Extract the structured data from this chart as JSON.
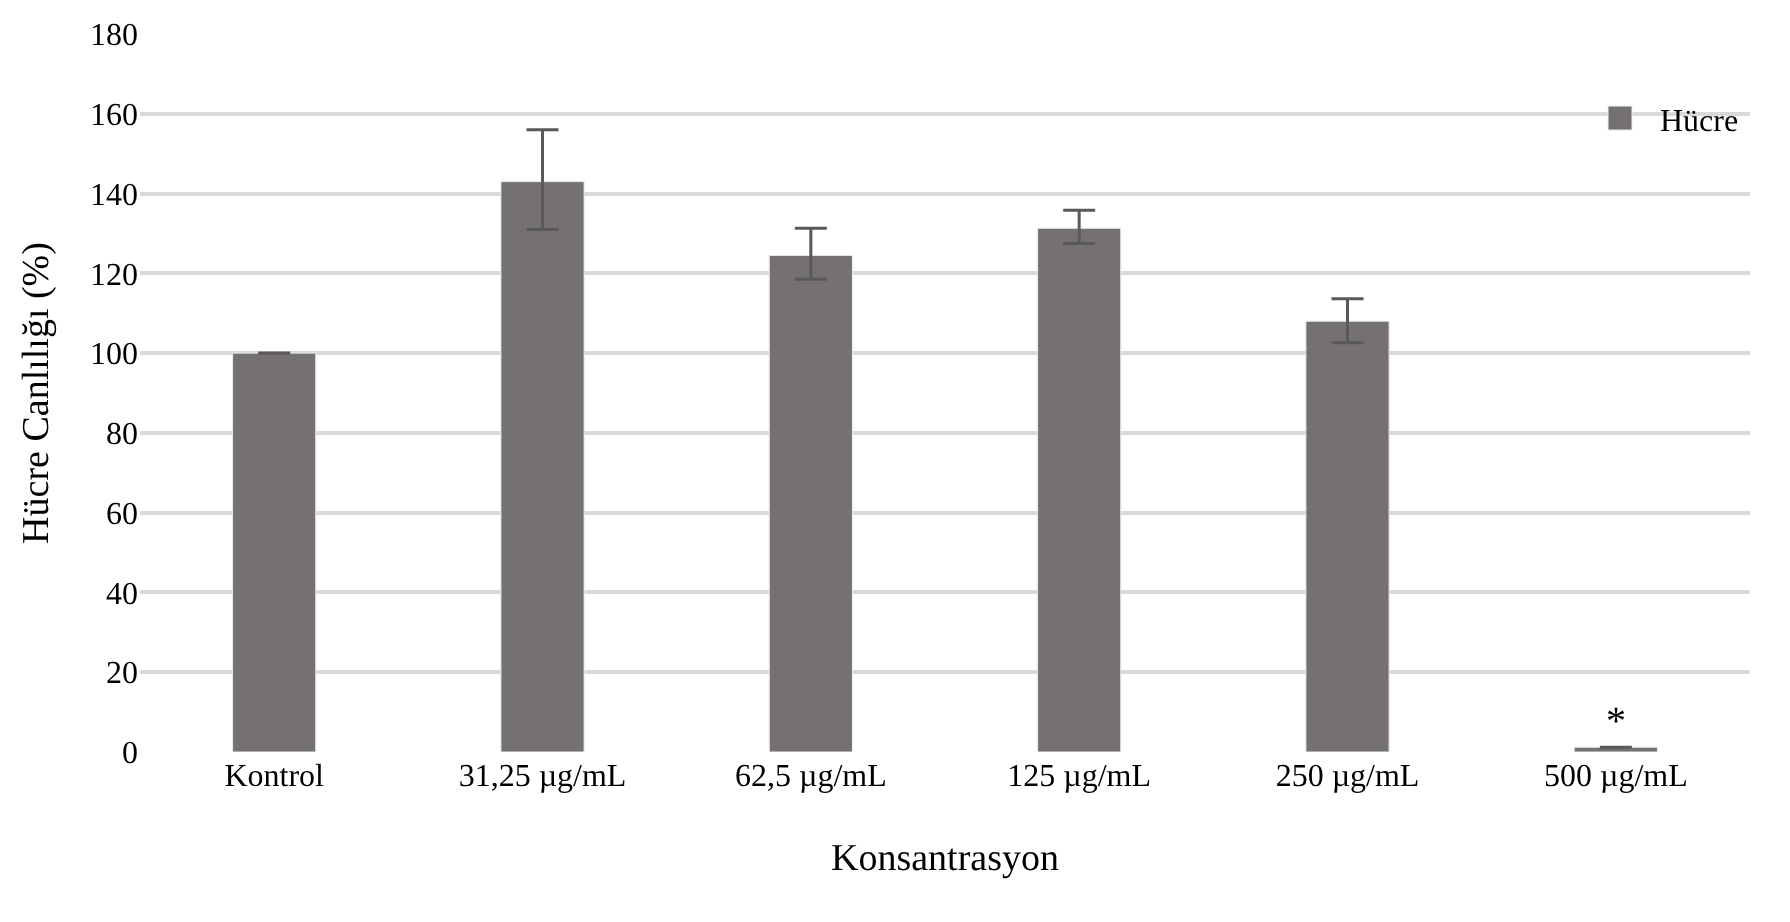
{
  "chart_data": {
    "type": "bar",
    "xlabel": "Konsantrasyon",
    "ylabel": "Hücre Canlılığı (%)",
    "categories": [
      "Kontrol",
      "31,25 µg/mL",
      "62,5 µg/mL",
      "125 µg/mL",
      "250 µg/mL",
      "500 µg/mL"
    ],
    "series": [
      {
        "name": "Hücre",
        "color": "#767171",
        "values": [
          100,
          143,
          124.5,
          131.3,
          108,
          1.2
        ],
        "errors": [
          null,
          [
            131,
            156
          ],
          [
            118.5,
            131.3
          ],
          [
            127.5,
            135.8
          ],
          [
            102.6,
            113.6
          ],
          null
        ]
      }
    ],
    "annotations": [
      {
        "text": "*",
        "x": "500 µg/mL",
        "y": 1.2
      }
    ],
    "ylim": [
      0,
      180
    ],
    "yticks": [
      0,
      20,
      40,
      60,
      80,
      100,
      120,
      140,
      160,
      180
    ],
    "grid": "y",
    "legend": "top right"
  }
}
